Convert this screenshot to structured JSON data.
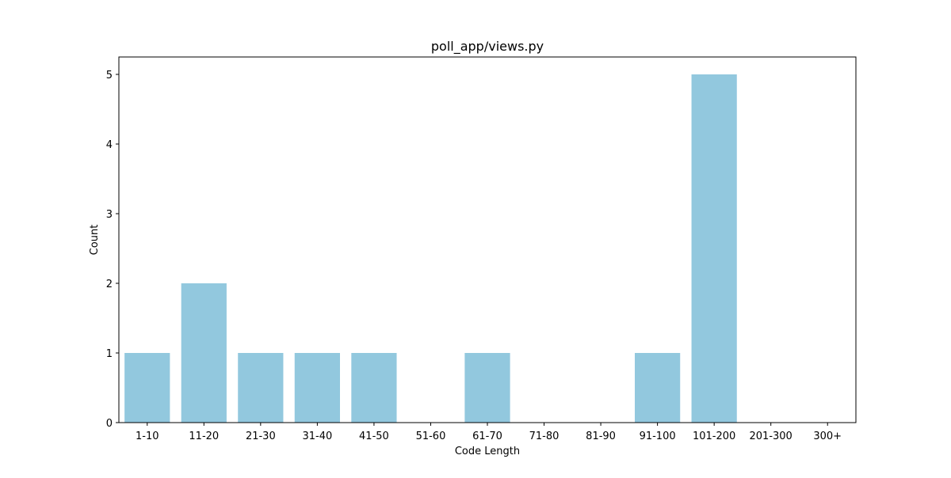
{
  "chart_data": {
    "type": "bar",
    "title": "poll_app/views.py",
    "xlabel": "Code Length",
    "ylabel": "Count",
    "categories": [
      "1-10",
      "11-20",
      "21-30",
      "31-40",
      "41-50",
      "51-60",
      "61-70",
      "71-80",
      "81-90",
      "91-100",
      "101-200",
      "201-300",
      "300+"
    ],
    "values": [
      1,
      2,
      1,
      1,
      1,
      0,
      1,
      0,
      0,
      1,
      5,
      0,
      0
    ],
    "ylim": [
      0,
      5.25
    ],
    "yticks": [
      "0",
      "1",
      "2",
      "3",
      "4",
      "5"
    ],
    "grid": false,
    "bar_color": "#92C8DE"
  }
}
